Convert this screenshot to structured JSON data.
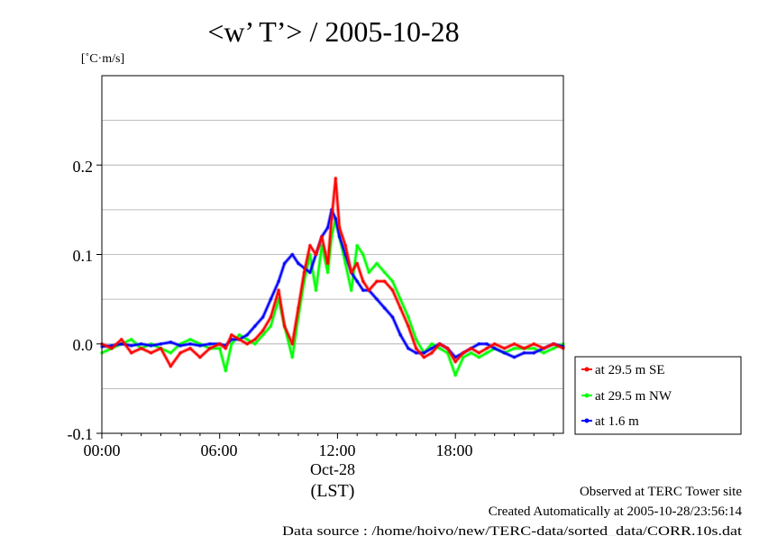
{
  "chart_data": {
    "type": "line",
    "title": "<w’ T’> / 2005-10-28",
    "ylabel": "[˚C·m/s]",
    "xlabel": "(LST)",
    "x_date_label": "Oct-28",
    "x_tick_labels": [
      "00:00",
      "06:00",
      "12:00",
      "18:00"
    ],
    "x_ticks_hours": [
      0,
      6,
      12,
      18
    ],
    "xlim_hours": [
      0,
      23.5
    ],
    "y_tick_labels": [
      "-0.1",
      "0.0",
      "0.1",
      "0.2"
    ],
    "y_ticks": [
      -0.1,
      0.0,
      0.1,
      0.2
    ],
    "ylim": [
      -0.1,
      0.3
    ],
    "grid": true,
    "legend_position": "right-bottom",
    "series": [
      {
        "name": "at 29.5 m SE",
        "color": "#ff0000",
        "x": [
          0,
          0.5,
          1,
          1.5,
          2,
          2.5,
          3,
          3.5,
          4,
          4.5,
          5,
          5.5,
          6,
          6.3,
          6.6,
          7,
          7.4,
          7.8,
          8.2,
          8.6,
          9,
          9.3,
          9.7,
          10,
          10.3,
          10.6,
          10.9,
          11.2,
          11.5,
          11.7,
          11.9,
          12.1,
          12.4,
          12.7,
          13,
          13.3,
          13.6,
          14,
          14.4,
          14.8,
          15.2,
          15.6,
          16,
          16.4,
          16.8,
          17.2,
          17.6,
          18,
          18.4,
          18.8,
          19.2,
          19.6,
          20,
          20.5,
          21,
          21.5,
          22,
          22.5,
          23,
          23.5
        ],
        "y": [
          0.0,
          -0.005,
          0.005,
          -0.01,
          -0.005,
          -0.01,
          -0.005,
          -0.025,
          -0.01,
          -0.005,
          -0.015,
          -0.005,
          0.0,
          -0.005,
          0.01,
          0.005,
          0.0,
          0.005,
          0.015,
          0.03,
          0.06,
          0.02,
          0.0,
          0.04,
          0.08,
          0.11,
          0.1,
          0.12,
          0.09,
          0.14,
          0.185,
          0.13,
          0.11,
          0.08,
          0.09,
          0.07,
          0.06,
          0.07,
          0.07,
          0.06,
          0.04,
          0.02,
          -0.005,
          -0.015,
          -0.01,
          0.0,
          -0.005,
          -0.02,
          -0.01,
          -0.005,
          -0.01,
          -0.005,
          0.0,
          -0.005,
          0.0,
          -0.005,
          0.0,
          -0.005,
          0.0,
          -0.005
        ]
      },
      {
        "name": "at 29.5 m NW",
        "color": "#00ff00",
        "x": [
          0,
          0.5,
          1,
          1.5,
          2,
          2.5,
          3,
          3.5,
          4,
          4.5,
          5,
          5.5,
          6,
          6.3,
          6.6,
          7,
          7.4,
          7.8,
          8.2,
          8.6,
          9,
          9.3,
          9.7,
          10,
          10.3,
          10.6,
          10.9,
          11.2,
          11.5,
          11.7,
          11.9,
          12.1,
          12.4,
          12.7,
          13,
          13.3,
          13.6,
          14,
          14.4,
          14.8,
          15.2,
          15.6,
          16,
          16.4,
          16.8,
          17.2,
          17.6,
          18,
          18.4,
          18.8,
          19.2,
          19.6,
          20,
          20.5,
          21,
          21.5,
          22,
          22.5,
          23,
          23.5
        ],
        "y": [
          -0.01,
          -0.005,
          0.0,
          0.005,
          -0.005,
          0.0,
          -0.005,
          -0.01,
          0.0,
          0.005,
          0.0,
          -0.005,
          -0.005,
          -0.03,
          0.0,
          0.01,
          0.005,
          0.0,
          0.01,
          0.02,
          0.05,
          0.02,
          -0.015,
          0.03,
          0.07,
          0.1,
          0.06,
          0.11,
          0.08,
          0.12,
          0.14,
          0.12,
          0.09,
          0.06,
          0.11,
          0.1,
          0.08,
          0.09,
          0.08,
          0.07,
          0.05,
          0.03,
          0.005,
          -0.01,
          0.0,
          -0.005,
          -0.01,
          -0.035,
          -0.015,
          -0.01,
          -0.015,
          -0.01,
          -0.005,
          -0.01,
          -0.005,
          -0.005,
          -0.005,
          -0.01,
          -0.005,
          0.0
        ]
      },
      {
        "name": "at 1.6 m",
        "color": "#0000ff",
        "x": [
          0,
          0.5,
          1,
          1.5,
          2,
          2.5,
          3,
          3.5,
          4,
          4.5,
          5,
          5.5,
          6,
          6.3,
          6.6,
          7,
          7.4,
          7.8,
          8.2,
          8.6,
          9,
          9.3,
          9.7,
          10,
          10.3,
          10.6,
          10.9,
          11.2,
          11.5,
          11.7,
          11.9,
          12.1,
          12.4,
          12.7,
          13,
          13.3,
          13.6,
          14,
          14.4,
          14.8,
          15.2,
          15.6,
          16,
          16.4,
          16.8,
          17.2,
          17.6,
          18,
          18.4,
          18.8,
          19.2,
          19.6,
          20,
          20.5,
          21,
          21.5,
          22,
          22.5,
          23,
          23.5
        ],
        "y": [
          -0.003,
          -0.002,
          0.0,
          -0.002,
          0.0,
          -0.002,
          0.0,
          0.002,
          -0.002,
          0.0,
          -0.002,
          0.0,
          0.0,
          -0.002,
          0.005,
          0.005,
          0.01,
          0.02,
          0.03,
          0.05,
          0.07,
          0.09,
          0.1,
          0.09,
          0.085,
          0.08,
          0.1,
          0.12,
          0.13,
          0.15,
          0.14,
          0.12,
          0.1,
          0.08,
          0.07,
          0.06,
          0.06,
          0.05,
          0.04,
          0.03,
          0.01,
          -0.005,
          -0.01,
          -0.01,
          -0.005,
          0.0,
          -0.005,
          -0.015,
          -0.01,
          -0.005,
          0.0,
          0.0,
          -0.005,
          -0.01,
          -0.015,
          -0.01,
          -0.01,
          -0.005,
          0.0,
          -0.003
        ]
      }
    ]
  },
  "footer": {
    "line1": "Observed at TERC Tower site",
    "line2": "Created Automatically at 2005-10-28/23:56:14",
    "line3": "Data source : /home/hoivo/new/TERC-data/sorted_data/CORR.10s.dat"
  }
}
